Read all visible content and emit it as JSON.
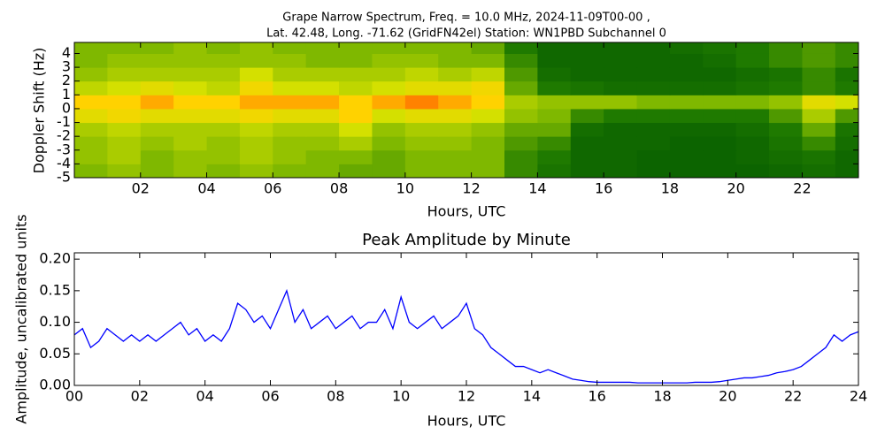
{
  "chart_data": [
    {
      "type": "heatmap",
      "title": [
        "Grape Narrow Spectrum, Freq. = 10.0 MHz, 2024-11-09T00-00 ,",
        "Lat.  42.48, Long. -71.62 (GridFN42el) Station: WN1PBD Subchannel 0"
      ],
      "xlabel": "Hours, UTC",
      "ylabel": "Doppler Shift (Hz)",
      "xlim": [
        0,
        23.7
      ],
      "ylim": [
        -5,
        4.8
      ],
      "xticks": [
        {
          "value": 2,
          "label": "02"
        },
        {
          "value": 4,
          "label": "04"
        },
        {
          "value": 6,
          "label": "06"
        },
        {
          "value": 8,
          "label": "08"
        },
        {
          "value": 10,
          "label": "10"
        },
        {
          "value": 12,
          "label": "12"
        },
        {
          "value": 14,
          "label": "14"
        },
        {
          "value": 16,
          "label": "16"
        },
        {
          "value": 18,
          "label": "18"
        },
        {
          "value": 20,
          "label": "20"
        },
        {
          "value": 22,
          "label": "22"
        }
      ],
      "yticks": [
        -5,
        -4,
        -3,
        -2,
        -1,
        0,
        1,
        2,
        3,
        4
      ],
      "x": [
        0,
        1,
        2,
        3,
        4,
        5,
        6,
        7,
        8,
        9,
        10,
        11,
        12,
        13,
        14,
        15,
        16,
        17,
        18,
        19,
        20,
        21,
        22,
        23
      ],
      "y": [
        -5,
        -4,
        -3,
        -2,
        -1,
        0,
        1,
        2,
        3,
        4
      ],
      "colorscale": [
        [
          0,
          "#005500"
        ],
        [
          0.3,
          "#1f7a00"
        ],
        [
          0.5,
          "#7fb800"
        ],
        [
          0.7,
          "#d4e000"
        ],
        [
          0.85,
          "#ffd200"
        ],
        [
          1,
          "#ff5a00"
        ]
      ],
      "values": [
        [
          0.5,
          0.55,
          0.5,
          0.55,
          0.5,
          0.55,
          0.5,
          0.5,
          0.45,
          0.45,
          0.5,
          0.5,
          0.5,
          0.35,
          0.25,
          0.15,
          0.15,
          0.12,
          0.12,
          0.12,
          0.12,
          0.15,
          0.2,
          0.15
        ],
        [
          0.55,
          0.6,
          0.5,
          0.55,
          0.55,
          0.6,
          0.55,
          0.5,
          0.5,
          0.45,
          0.5,
          0.5,
          0.5,
          0.35,
          0.3,
          0.15,
          0.15,
          0.12,
          0.12,
          0.12,
          0.15,
          0.2,
          0.25,
          0.15
        ],
        [
          0.55,
          0.6,
          0.55,
          0.6,
          0.55,
          0.6,
          0.55,
          0.55,
          0.6,
          0.5,
          0.55,
          0.55,
          0.5,
          0.4,
          0.35,
          0.15,
          0.15,
          0.15,
          0.12,
          0.12,
          0.15,
          0.25,
          0.35,
          0.2
        ],
        [
          0.6,
          0.65,
          0.6,
          0.6,
          0.6,
          0.65,
          0.6,
          0.6,
          0.7,
          0.55,
          0.6,
          0.6,
          0.55,
          0.45,
          0.45,
          0.2,
          0.15,
          0.15,
          0.15,
          0.15,
          0.2,
          0.3,
          0.45,
          0.25
        ],
        [
          0.75,
          0.8,
          0.75,
          0.75,
          0.75,
          0.8,
          0.75,
          0.75,
          0.85,
          0.7,
          0.75,
          0.75,
          0.7,
          0.55,
          0.5,
          0.35,
          0.3,
          0.3,
          0.3,
          0.3,
          0.3,
          0.4,
          0.6,
          0.4
        ],
        [
          0.85,
          0.85,
          0.9,
          0.85,
          0.85,
          0.9,
          0.9,
          0.9,
          0.85,
          0.9,
          0.95,
          0.9,
          0.85,
          0.6,
          0.55,
          0.55,
          0.55,
          0.5,
          0.5,
          0.5,
          0.5,
          0.55,
          0.75,
          0.7
        ],
        [
          0.65,
          0.7,
          0.75,
          0.7,
          0.65,
          0.8,
          0.7,
          0.7,
          0.65,
          0.7,
          0.75,
          0.75,
          0.8,
          0.45,
          0.3,
          0.25,
          0.2,
          0.2,
          0.2,
          0.2,
          0.25,
          0.3,
          0.35,
          0.3
        ],
        [
          0.55,
          0.6,
          0.6,
          0.6,
          0.6,
          0.7,
          0.6,
          0.6,
          0.6,
          0.6,
          0.65,
          0.6,
          0.65,
          0.4,
          0.2,
          0.15,
          0.15,
          0.15,
          0.15,
          0.15,
          0.2,
          0.25,
          0.35,
          0.25
        ],
        [
          0.5,
          0.55,
          0.55,
          0.55,
          0.55,
          0.55,
          0.55,
          0.5,
          0.5,
          0.55,
          0.55,
          0.5,
          0.5,
          0.35,
          0.15,
          0.15,
          0.15,
          0.15,
          0.15,
          0.2,
          0.3,
          0.35,
          0.4,
          0.35
        ],
        [
          0.5,
          0.5,
          0.5,
          0.55,
          0.5,
          0.55,
          0.5,
          0.5,
          0.5,
          0.5,
          0.5,
          0.5,
          0.45,
          0.3,
          0.15,
          0.15,
          0.15,
          0.15,
          0.2,
          0.25,
          0.3,
          0.35,
          0.4,
          0.35
        ]
      ]
    },
    {
      "type": "line",
      "title": "Peak Amplitude by Minute",
      "xlabel": "Hours, UTC",
      "ylabel": "Amplitude, uncalibrated units",
      "xlim": [
        0,
        24
      ],
      "ylim": [
        0,
        0.21
      ],
      "xticks": [
        {
          "value": 0,
          "label": "00"
        },
        {
          "value": 2,
          "label": "02"
        },
        {
          "value": 4,
          "label": "04"
        },
        {
          "value": 6,
          "label": "06"
        },
        {
          "value": 8,
          "label": "08"
        },
        10,
        12,
        14,
        16,
        18,
        20,
        22,
        24
      ],
      "yticks": [
        {
          "value": 0,
          "label": "0.00"
        },
        {
          "value": 0.05,
          "label": "0.05"
        },
        {
          "value": 0.1,
          "label": "0.10"
        },
        {
          "value": 0.15,
          "label": "0.15"
        },
        {
          "value": 0.2,
          "label": "0.20"
        }
      ],
      "series": [
        {
          "color": "#0000ff",
          "x": [
            0,
            0.25,
            0.5,
            0.75,
            1,
            1.25,
            1.5,
            1.75,
            2,
            2.25,
            2.5,
            2.75,
            3,
            3.25,
            3.5,
            3.75,
            4,
            4.25,
            4.5,
            4.75,
            5,
            5.25,
            5.5,
            5.75,
            6,
            6.25,
            6.5,
            6.75,
            7,
            7.25,
            7.5,
            7.75,
            8,
            8.25,
            8.5,
            8.75,
            9,
            9.25,
            9.5,
            9.75,
            10,
            10.25,
            10.5,
            10.75,
            11,
            11.25,
            11.5,
            11.75,
            12,
            12.25,
            12.5,
            12.75,
            13,
            13.25,
            13.5,
            13.75,
            14,
            14.25,
            14.5,
            14.75,
            15,
            15.25,
            15.5,
            15.75,
            16,
            16.25,
            16.5,
            16.75,
            17,
            17.25,
            17.5,
            17.75,
            18,
            18.25,
            18.5,
            18.75,
            19,
            19.25,
            19.5,
            19.75,
            20,
            20.25,
            20.5,
            20.75,
            21,
            21.25,
            21.5,
            21.75,
            22,
            22.25,
            22.5,
            22.75,
            23,
            23.25,
            23.5,
            23.75,
            24
          ],
          "values": [
            0.08,
            0.09,
            0.06,
            0.07,
            0.09,
            0.08,
            0.07,
            0.08,
            0.07,
            0.08,
            0.07,
            0.08,
            0.09,
            0.1,
            0.08,
            0.09,
            0.07,
            0.08,
            0.07,
            0.09,
            0.13,
            0.12,
            0.1,
            0.11,
            0.09,
            0.12,
            0.15,
            0.1,
            0.12,
            0.09,
            0.1,
            0.11,
            0.09,
            0.1,
            0.11,
            0.09,
            0.1,
            0.1,
            0.12,
            0.09,
            0.14,
            0.1,
            0.09,
            0.1,
            0.11,
            0.09,
            0.1,
            0.11,
            0.13,
            0.09,
            0.08,
            0.06,
            0.05,
            0.04,
            0.03,
            0.03,
            0.025,
            0.02,
            0.025,
            0.02,
            0.015,
            0.01,
            0.008,
            0.006,
            0.005,
            0.005,
            0.005,
            0.005,
            0.005,
            0.004,
            0.004,
            0.004,
            0.004,
            0.004,
            0.004,
            0.004,
            0.005,
            0.005,
            0.005,
            0.006,
            0.008,
            0.01,
            0.012,
            0.012,
            0.014,
            0.016,
            0.02,
            0.022,
            0.025,
            0.03,
            0.04,
            0.05,
            0.06,
            0.08,
            0.07,
            0.08,
            0.085
          ]
        }
      ]
    }
  ]
}
